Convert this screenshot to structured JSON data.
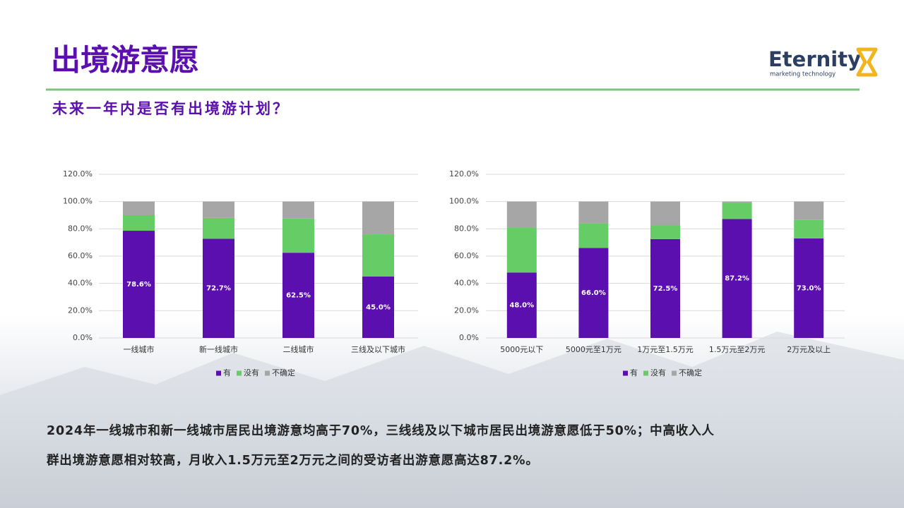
{
  "header": {
    "title": "出境游意愿",
    "subtitle": "未来一年内是否有出境游计划？",
    "logo": {
      "name": "Eternity",
      "tagline": "marketing technology"
    }
  },
  "chart_data": [
    {
      "type": "bar",
      "stacked": true,
      "grid": true,
      "legend": "bottom",
      "categories": [
        "一线城市",
        "新一线城市",
        "二线城市",
        "三线及以下城市"
      ],
      "series": [
        {
          "name": "有",
          "color": "#5a0fae",
          "values": [
            78.6,
            72.7,
            62.5,
            45.0
          ],
          "value_labels": [
            "78.6%",
            "72.7%",
            "62.5%",
            "45.0%"
          ]
        },
        {
          "name": "没有",
          "color": "#66cc66",
          "values": [
            11.4,
            15.3,
            25.0,
            31.0
          ]
        },
        {
          "name": "不确定",
          "color": "#a6a6a6",
          "values": [
            10.0,
            12.0,
            12.5,
            24.0
          ]
        }
      ],
      "ylim": [
        0,
        120
      ],
      "yticks": [
        {
          "value": 0,
          "label": "0.0%"
        },
        {
          "value": 20,
          "label": "20.0%"
        },
        {
          "value": 40,
          "label": "40.0%"
        },
        {
          "value": 60,
          "label": "60.0%"
        },
        {
          "value": 80,
          "label": "80.0%"
        },
        {
          "value": 100,
          "label": "100.0%"
        },
        {
          "value": 120,
          "label": "120.0%"
        }
      ]
    },
    {
      "type": "bar",
      "stacked": true,
      "grid": true,
      "legend": "bottom",
      "categories": [
        "5000元以下",
        "5000元至1万元",
        "1万元至1.5万元",
        "1.5万元至2万元",
        "2万元及以上"
      ],
      "series": [
        {
          "name": "有",
          "color": "#5a0fae",
          "values": [
            48.0,
            66.0,
            72.5,
            87.2,
            73.0
          ],
          "value_labels": [
            "48.0%",
            "66.0%",
            "72.5%",
            "87.2%",
            "73.0%"
          ]
        },
        {
          "name": "没有",
          "color": "#66cc66",
          "values": [
            33.0,
            18.0,
            10.0,
            11.8,
            13.5
          ]
        },
        {
          "name": "不确定",
          "color": "#a6a6a6",
          "values": [
            19.0,
            16.0,
            17.5,
            1.0,
            13.5
          ]
        }
      ],
      "ylim": [
        0,
        120
      ],
      "yticks": [
        {
          "value": 0,
          "label": "0.0%"
        },
        {
          "value": 20,
          "label": "20.0%"
        },
        {
          "value": 40,
          "label": "40.0%"
        },
        {
          "value": 60,
          "label": "60.0%"
        },
        {
          "value": 80,
          "label": "80.0%"
        },
        {
          "value": 100,
          "label": "100.0%"
        },
        {
          "value": 120,
          "label": "120.0%"
        }
      ]
    }
  ],
  "body": [
    "2024年一线城市和新一线城市居民出境游意均高于70%，三线线及以下城市居民出境游意愿低于50%；中高收入人",
    "群出境游意愿相对较高，月收入1.5万元至2万元之间的受访者出游意愿高达87.2%。"
  ]
}
